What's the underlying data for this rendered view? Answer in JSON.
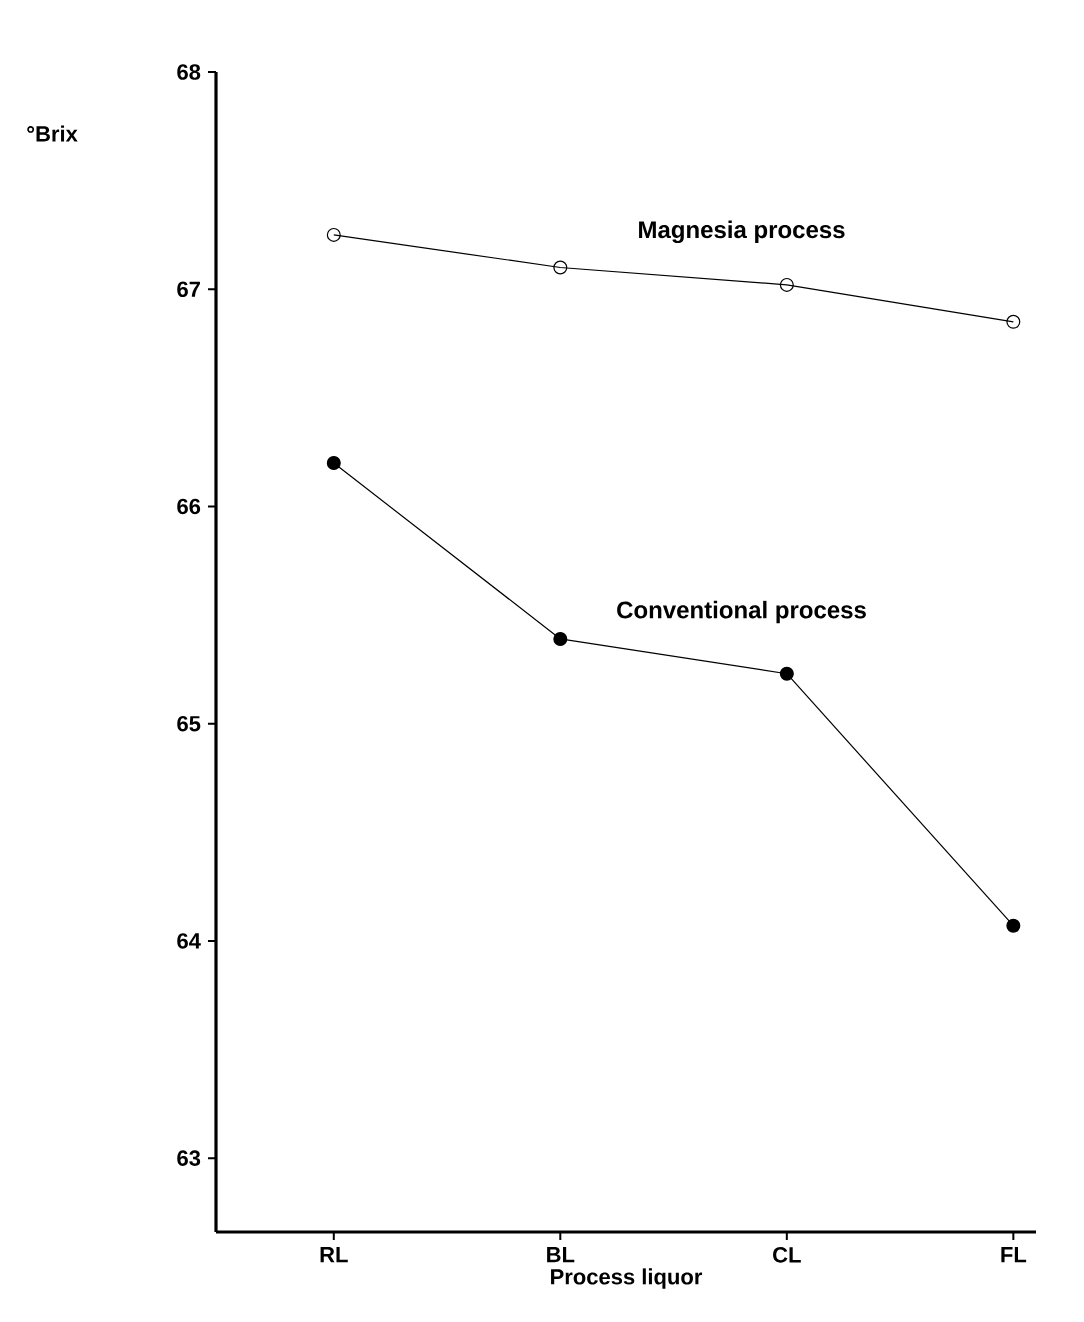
{
  "chart_data": {
    "type": "line",
    "xlabel": "Process liquor",
    "ylabel": "°Brix",
    "categories": [
      "RL",
      "BL",
      "CL",
      "FL"
    ],
    "series": [
      {
        "name": "Magnesia process",
        "color": "#000000",
        "marker": "circle_open",
        "values": [
          67.25,
          67.1,
          67.02,
          66.85
        ]
      },
      {
        "name": "Conventional process",
        "color": "#000000",
        "marker": "circle",
        "values": [
          66.2,
          65.39,
          65.23,
          64.07
        ]
      }
    ],
    "ylim": [
      62.66,
      68
    ],
    "yticks": [
      63,
      64,
      65,
      66,
      67,
      68
    ],
    "legend": false,
    "grid": false,
    "line_style": "solid"
  }
}
